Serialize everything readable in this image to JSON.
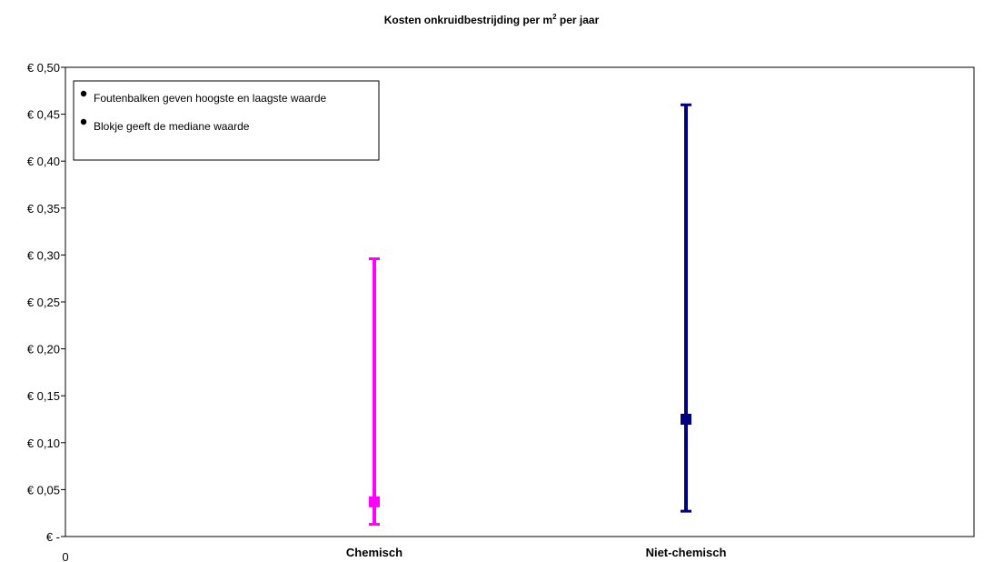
{
  "chart_data": {
    "type": "range",
    "title": "Kosten onkruidbestrijding per m",
    "title_sup": "2",
    "title_suffix": " per jaar",
    "y_ticks": [
      {
        "value": 0.5,
        "label": "€ 0,50"
      },
      {
        "value": 0.45,
        "label": "€ 0,45"
      },
      {
        "value": 0.4,
        "label": "€ 0,40"
      },
      {
        "value": 0.35,
        "label": "€ 0,35"
      },
      {
        "value": 0.3,
        "label": "€ 0,30"
      },
      {
        "value": 0.25,
        "label": "€ 0,25"
      },
      {
        "value": 0.2,
        "label": "€ 0,20"
      },
      {
        "value": 0.15,
        "label": "€ 0,15"
      },
      {
        "value": 0.1,
        "label": "€ 0,10"
      },
      {
        "value": 0.05,
        "label": "€ 0,05"
      },
      {
        "value": 0.0,
        "label": "€ -"
      }
    ],
    "ylim": [
      0,
      0.5
    ],
    "x_origin_label": "0",
    "categories": [
      "Chemisch",
      "Niet-chemisch"
    ],
    "series": [
      {
        "category": "Chemisch",
        "low": 0.013,
        "high": 0.296,
        "median": 0.037,
        "color": "#ff00ff"
      },
      {
        "category": "Niet-chemisch",
        "low": 0.027,
        "high": 0.46,
        "median": 0.125,
        "color": "#000080"
      }
    ],
    "legend": {
      "placement": "top-left",
      "items": [
        "Foutenbalken geven hoogste en laagste waarde",
        "Blokje geeft de mediane waarde"
      ]
    },
    "grid": false
  }
}
